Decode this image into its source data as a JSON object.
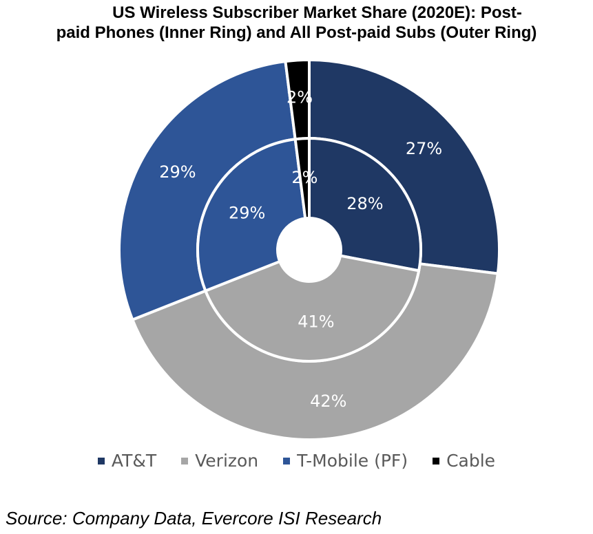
{
  "chart_data": {
    "type": "pie",
    "title_line1": "US Wireless Subscriber Market Share (2020E): Post-",
    "title_line2": "paid Phones (Inner Ring) and All Post-paid Subs (Outer Ring)",
    "categories": [
      "AT&T",
      "Verizon",
      "T-Mobile (PF)",
      "Cable"
    ],
    "colors": [
      "#1f3864",
      "#a6a6a6",
      "#2e5597",
      "#000000"
    ],
    "series": [
      {
        "values": [
          28,
          41,
          29,
          2
        ],
        "labels": [
          "28%",
          "41%",
          "29%",
          "2%"
        ]
      },
      {
        "values": [
          27,
          42,
          29,
          2
        ],
        "labels": [
          "27%",
          "42%",
          "29%",
          "2%"
        ]
      }
    ],
    "legend_position": "bottom",
    "source": "Source: Company Data, Evercore ISI Research"
  }
}
